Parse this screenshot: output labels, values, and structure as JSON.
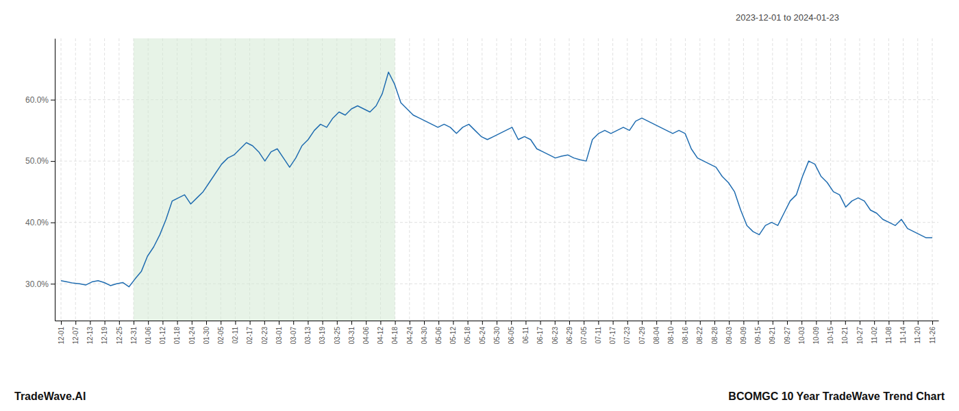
{
  "chart_data": {
    "type": "line",
    "title": "BCOMGC 10 Year TradeWave Trend Chart",
    "subtitle": "2023-12-01 to 2024-01-23",
    "annotations": [
      "TradeWave.AI"
    ],
    "color": "#1f6cb0",
    "grid": true,
    "highlight": {
      "from": 11.75,
      "to": 54.05,
      "color": "#d4ead4"
    },
    "xlim": [
      -1,
      142
    ],
    "xticks": [
      {
        "value": 0,
        "label": "12-01"
      },
      {
        "value": 2.35,
        "label": "12-07"
      },
      {
        "value": 4.7,
        "label": "12-13"
      },
      {
        "value": 7.05,
        "label": "12-19"
      },
      {
        "value": 9.4,
        "label": "12-25"
      },
      {
        "value": 11.75,
        "label": "12-31"
      },
      {
        "value": 14.1,
        "label": "01-06"
      },
      {
        "value": 16.45,
        "label": "01-12"
      },
      {
        "value": 18.8,
        "label": "01-18"
      },
      {
        "value": 21.15,
        "label": "01-24"
      },
      {
        "value": 23.5,
        "label": "01-30"
      },
      {
        "value": 25.85,
        "label": "02-05"
      },
      {
        "value": 28.2,
        "label": "02-11"
      },
      {
        "value": 30.55,
        "label": "02-17"
      },
      {
        "value": 32.9,
        "label": "02-23"
      },
      {
        "value": 35.25,
        "label": "03-01"
      },
      {
        "value": 37.6,
        "label": "03-07"
      },
      {
        "value": 39.95,
        "label": "03-13"
      },
      {
        "value": 42.3,
        "label": "03-19"
      },
      {
        "value": 44.65,
        "label": "03-25"
      },
      {
        "value": 47,
        "label": "03-31"
      },
      {
        "value": 49.35,
        "label": "04-06"
      },
      {
        "value": 51.7,
        "label": "04-12"
      },
      {
        "value": 54.05,
        "label": "04-18"
      },
      {
        "value": 56.4,
        "label": "04-24"
      },
      {
        "value": 58.75,
        "label": "04-30"
      },
      {
        "value": 61.1,
        "label": "05-06"
      },
      {
        "value": 63.45,
        "label": "05-12"
      },
      {
        "value": 65.8,
        "label": "05-18"
      },
      {
        "value": 68.15,
        "label": "05-24"
      },
      {
        "value": 70.5,
        "label": "05-30"
      },
      {
        "value": 72.85,
        "label": "06-05"
      },
      {
        "value": 75.2,
        "label": "06-11"
      },
      {
        "value": 77.55,
        "label": "06-17"
      },
      {
        "value": 79.9,
        "label": "06-23"
      },
      {
        "value": 82.25,
        "label": "06-29"
      },
      {
        "value": 84.6,
        "label": "07-05"
      },
      {
        "value": 86.95,
        "label": "07-11"
      },
      {
        "value": 89.3,
        "label": "07-17"
      },
      {
        "value": 91.65,
        "label": "07-23"
      },
      {
        "value": 94,
        "label": "07-29"
      },
      {
        "value": 96.35,
        "label": "08-04"
      },
      {
        "value": 98.7,
        "label": "08-10"
      },
      {
        "value": 101.05,
        "label": "08-16"
      },
      {
        "value": 103.4,
        "label": "08-22"
      },
      {
        "value": 105.75,
        "label": "08-28"
      },
      {
        "value": 108.1,
        "label": "09-03"
      },
      {
        "value": 110.45,
        "label": "09-09"
      },
      {
        "value": 112.8,
        "label": "09-15"
      },
      {
        "value": 115.15,
        "label": "09-21"
      },
      {
        "value": 117.5,
        "label": "09-27"
      },
      {
        "value": 119.85,
        "label": "10-03"
      },
      {
        "value": 122.2,
        "label": "10-09"
      },
      {
        "value": 124.55,
        "label": "10-15"
      },
      {
        "value": 126.9,
        "label": "10-21"
      },
      {
        "value": 129.25,
        "label": "10-27"
      },
      {
        "value": 131.6,
        "label": "11-02"
      },
      {
        "value": 133.95,
        "label": "11-08"
      },
      {
        "value": 136.3,
        "label": "11-14"
      },
      {
        "value": 138.65,
        "label": "11-20"
      },
      {
        "value": 141,
        "label": "11-26"
      }
    ],
    "ylim": [
      24,
      70
    ],
    "yticks": [
      {
        "value": 30.0,
        "label": "30.0%"
      },
      {
        "value": 40.0,
        "label": "40.0%"
      },
      {
        "value": 50.0,
        "label": "50.0%"
      },
      {
        "value": 60.0,
        "label": "60.0%"
      }
    ],
    "values": [
      30.5,
      30.3,
      30.1,
      30.0,
      29.8,
      30.3,
      30.5,
      30.2,
      29.7,
      30.0,
      30.2,
      29.5,
      30.8,
      32.0,
      34.5,
      36.0,
      38.0,
      40.5,
      43.5,
      44.0,
      44.5,
      43.0,
      44.0,
      45.0,
      46.5,
      48.0,
      49.5,
      50.5,
      51.0,
      52.0,
      53.0,
      52.5,
      51.5,
      50.0,
      51.5,
      52.0,
      50.5,
      49.0,
      50.5,
      52.5,
      53.5,
      55.0,
      56.0,
      55.5,
      57.0,
      58.0,
      57.5,
      58.5,
      59.0,
      58.5,
      58.0,
      59.0,
      61.0,
      64.5,
      62.5,
      59.5,
      58.5,
      57.5,
      57.0,
      56.5,
      56.0,
      55.5,
      56.0,
      55.5,
      54.5,
      55.5,
      56.0,
      55.0,
      54.0,
      53.5,
      54.0,
      54.5,
      55.0,
      55.5,
      53.5,
      54.0,
      53.5,
      52.0,
      51.5,
      51.0,
      50.5,
      50.8,
      51.0,
      50.5,
      50.2,
      50.0,
      53.5,
      54.5,
      55.0,
      54.5,
      55.0,
      55.5,
      55.0,
      56.5,
      57.0,
      56.5,
      56.0,
      55.5,
      55.0,
      54.5,
      55.0,
      54.5,
      52.0,
      50.5,
      50.0,
      49.5,
      49.0,
      47.5,
      46.5,
      45.0,
      42.0,
      39.5,
      38.5,
      38.0,
      39.5,
      40.0,
      39.5,
      41.5,
      43.5,
      44.5,
      47.5,
      50.0,
      49.5,
      47.5,
      46.5,
      45.0,
      44.5,
      42.5,
      43.5,
      44.0,
      43.5,
      42.0,
      41.5,
      40.5,
      40.0,
      39.5,
      40.5,
      39.0,
      38.5,
      38.0,
      37.5,
      37.5
    ]
  }
}
